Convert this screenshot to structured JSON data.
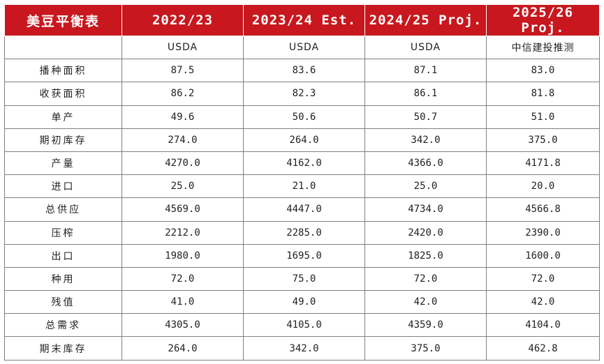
{
  "table": {
    "title": "美豆平衡表",
    "columns": [
      "2022/23",
      "2023/24 Est.",
      "2024/25 Proj.",
      "2025/26 Proj."
    ],
    "sources": [
      "USDA",
      "USDA",
      "USDA",
      "中信建投推测"
    ],
    "rows": [
      {
        "label": "播种面积",
        "values": [
          "87.5",
          "83.6",
          "87.1",
          "83.0"
        ]
      },
      {
        "label": "收获面积",
        "values": [
          "86.2",
          "82.3",
          "86.1",
          "81.8"
        ]
      },
      {
        "label": "单产",
        "values": [
          "49.6",
          "50.6",
          "50.7",
          "51.0"
        ]
      },
      {
        "label": "期初库存",
        "values": [
          "274.0",
          "264.0",
          "342.0",
          "375.0"
        ]
      },
      {
        "label": "产量",
        "values": [
          "4270.0",
          "4162.0",
          "4366.0",
          "4171.8"
        ]
      },
      {
        "label": "进口",
        "values": [
          "25.0",
          "21.0",
          "25.0",
          "20.0"
        ]
      },
      {
        "label": "总供应",
        "values": [
          "4569.0",
          "4447.0",
          "4734.0",
          "4566.8"
        ]
      },
      {
        "label": "压榨",
        "values": [
          "2212.0",
          "2285.0",
          "2420.0",
          "2390.0"
        ]
      },
      {
        "label": "出口",
        "values": [
          "1980.0",
          "1695.0",
          "1825.0",
          "1600.0"
        ]
      },
      {
        "label": "种用",
        "values": [
          "72.0",
          "75.0",
          "72.0",
          "72.0"
        ]
      },
      {
        "label": "残值",
        "values": [
          "41.0",
          "49.0",
          "42.0",
          "42.0"
        ]
      },
      {
        "label": "总需求",
        "values": [
          "4305.0",
          "4105.0",
          "4359.0",
          "4104.0"
        ]
      },
      {
        "label": "期末库存",
        "values": [
          "264.0",
          "342.0",
          "375.0",
          "462.8"
        ]
      }
    ]
  }
}
